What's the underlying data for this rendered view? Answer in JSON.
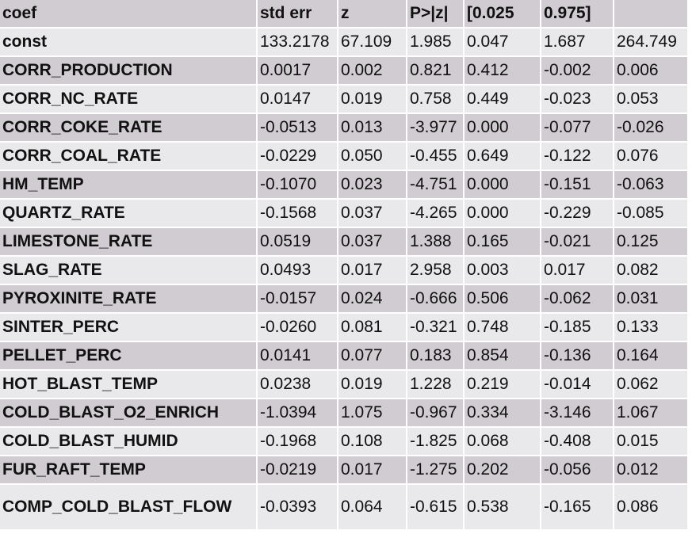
{
  "header": [
    "coef",
    "std err",
    "z",
    "P>|z|",
    "[0.025",
    "0.975]",
    ""
  ],
  "rows": [
    {
      "name": "const",
      "v": [
        "133.2178",
        "67.109",
        "1.985",
        "0.047",
        "1.687",
        "264.749"
      ]
    },
    {
      "name": "CORR_PRODUCTION",
      "v": [
        "0.0017",
        "0.002",
        "0.821",
        "0.412",
        "-0.002",
        "0.006"
      ]
    },
    {
      "name": "CORR_NC_RATE",
      "v": [
        "0.0147",
        "0.019",
        "0.758",
        "0.449",
        "-0.023",
        "0.053"
      ]
    },
    {
      "name": "CORR_COKE_RATE",
      "v": [
        "-0.0513",
        "0.013",
        "-3.977",
        "0.000",
        "-0.077",
        "-0.026"
      ]
    },
    {
      "name": "CORR_COAL_RATE",
      "v": [
        "-0.0229",
        "0.050",
        "-0.455",
        "0.649",
        "-0.122",
        "0.076"
      ]
    },
    {
      "name": "HM_TEMP",
      "v": [
        "-0.1070",
        "0.023",
        "-4.751",
        "0.000",
        "-0.151",
        "-0.063"
      ]
    },
    {
      "name": "QUARTZ_RATE",
      "v": [
        "-0.1568",
        "0.037",
        "-4.265",
        "0.000",
        "-0.229",
        "-0.085"
      ]
    },
    {
      "name": "LIMESTONE_RATE",
      "v": [
        "0.0519",
        "0.037",
        "1.388",
        "0.165",
        "-0.021",
        "0.125"
      ]
    },
    {
      "name": "SLAG_RATE",
      "v": [
        "0.0493",
        "0.017",
        "2.958",
        "0.003",
        "0.017",
        "0.082"
      ]
    },
    {
      "name": "PYROXINITE_RATE",
      "v": [
        "-0.0157",
        "0.024",
        "-0.666",
        "0.506",
        "-0.062",
        "0.031"
      ]
    },
    {
      "name": "SINTER_PERC",
      "v": [
        "-0.0260",
        "0.081",
        "-0.321",
        "0.748",
        "-0.185",
        "0.133"
      ]
    },
    {
      "name": "PELLET_PERC",
      "v": [
        "0.0141",
        "0.077",
        "0.183",
        "0.854",
        "-0.136",
        "0.164"
      ]
    },
    {
      "name": "HOT_BLAST_TEMP",
      "v": [
        "0.0238",
        "0.019",
        "1.228",
        "0.219",
        "-0.014",
        "0.062"
      ]
    },
    {
      "name": "COLD_BLAST_O2_ENRICH",
      "v": [
        "-1.0394",
        "1.075",
        "-0.967",
        "0.334",
        "-3.146",
        "1.067"
      ]
    },
    {
      "name": "COLD_BLAST_HUMID",
      "v": [
        "-0.1968",
        "0.108",
        "-1.825",
        "0.068",
        "-0.408",
        "0.015"
      ]
    },
    {
      "name": "FUR_RAFT_TEMP",
      "v": [
        "-0.0219",
        "0.017",
        "-1.275",
        "0.202",
        "-0.056",
        "0.012"
      ]
    },
    {
      "name": "COMP_COLD_BLAST_FLOW",
      "v": [
        "-0.0393",
        "0.064",
        "-0.615",
        "0.538",
        "-0.165",
        "0.086"
      ]
    }
  ]
}
